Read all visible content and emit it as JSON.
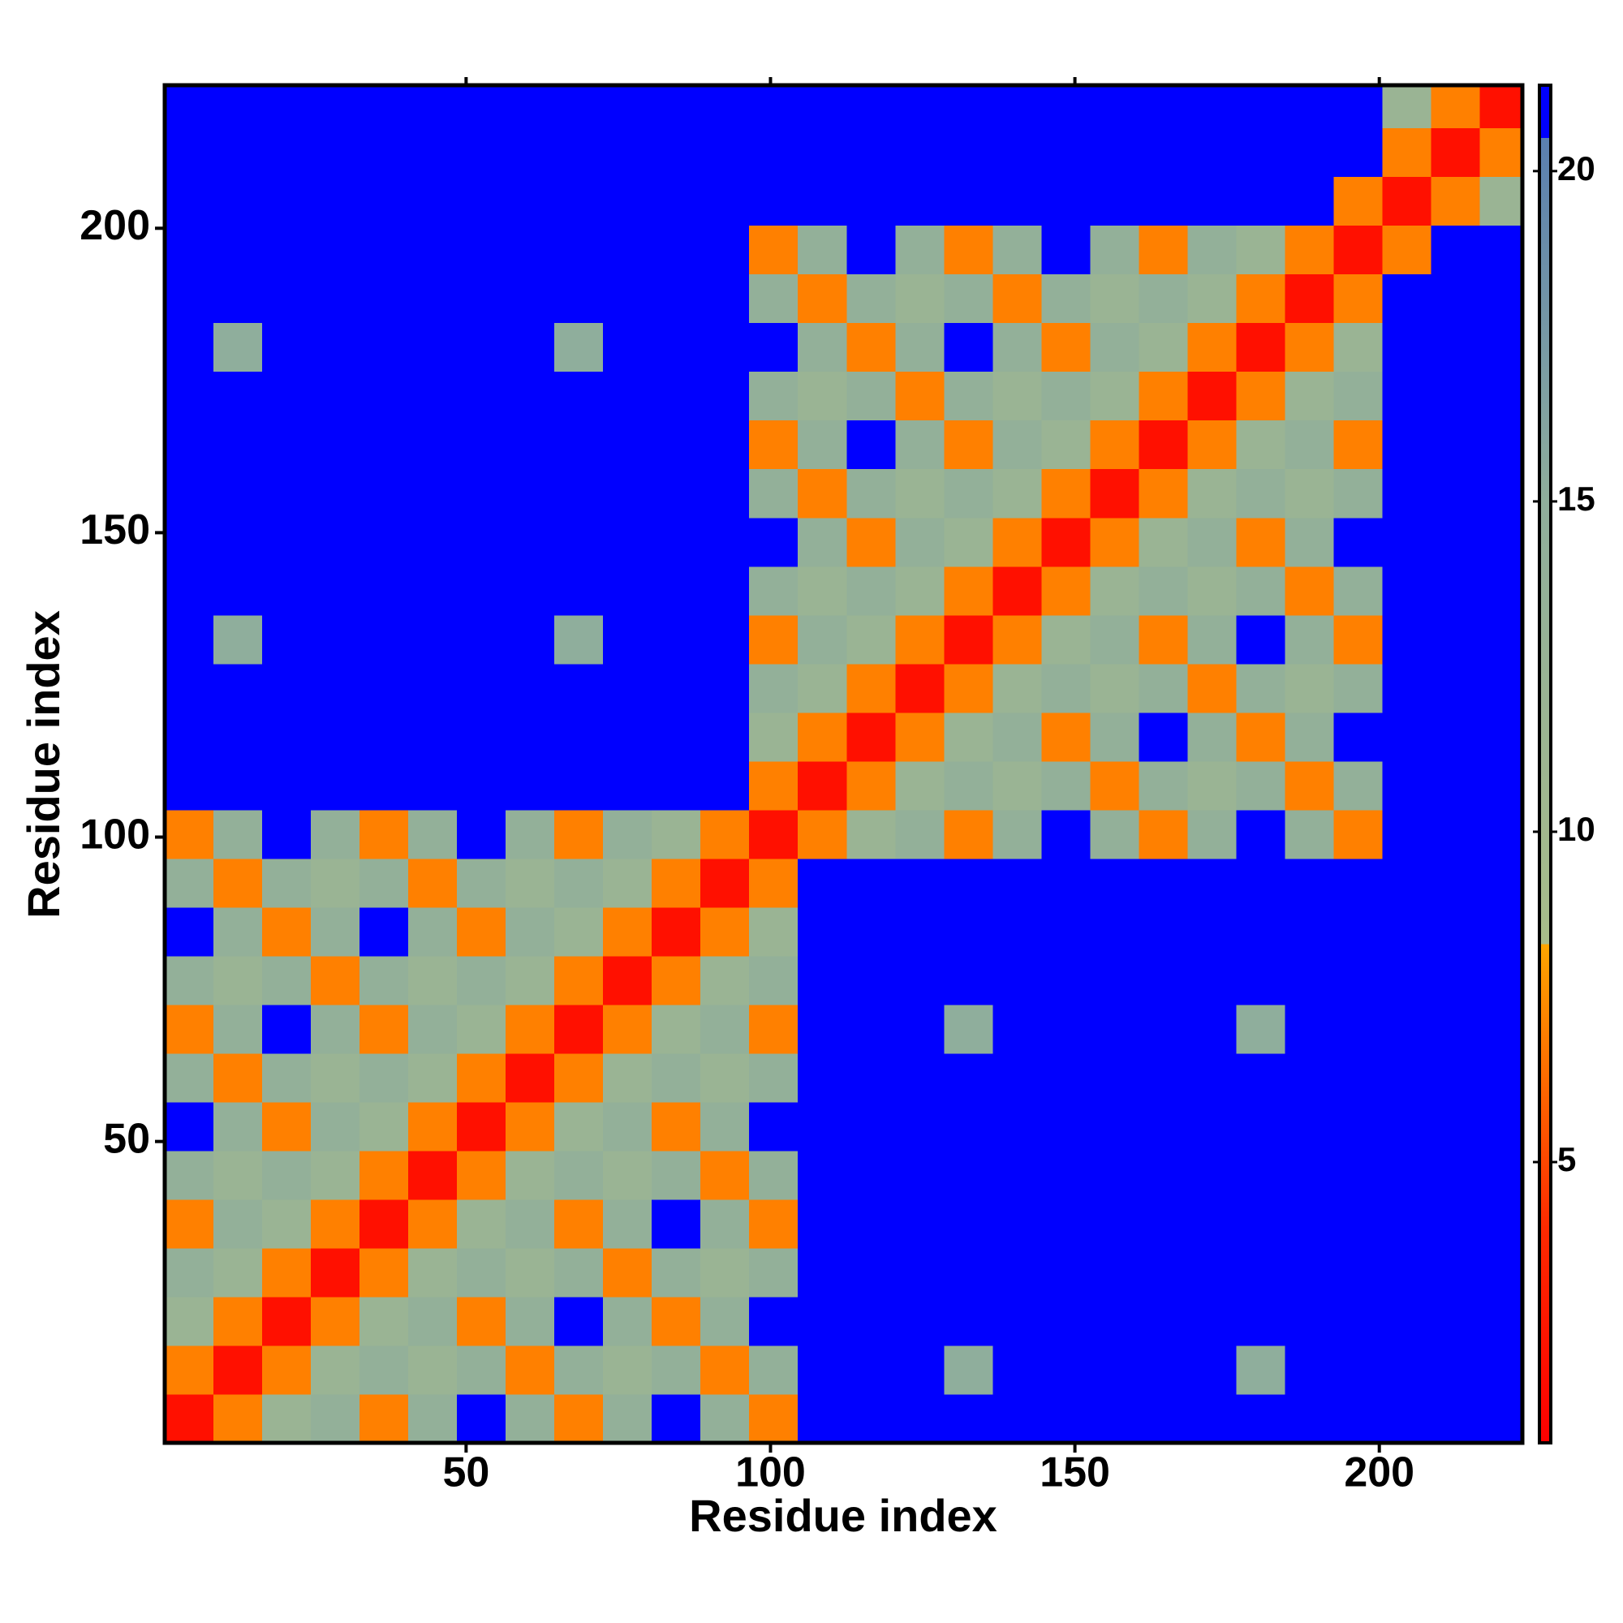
{
  "chart_data": {
    "type": "heatmap",
    "xlabel": "Residue index",
    "ylabel": "Residue index",
    "xlim": [
      0.5,
      223.5
    ],
    "ylim": [
      0.5,
      223.5
    ],
    "xticks": [
      50,
      100,
      150,
      200
    ],
    "yticks": [
      50,
      100,
      150,
      200
    ],
    "xbins": [
      0.5,
      8.5,
      16.5,
      24.5,
      32.5,
      40.5,
      48.5,
      56.5,
      64.5,
      72.5,
      80.5,
      88.5,
      96.5,
      104.5,
      112.5,
      120.5,
      128.5,
      136.5,
      144.5,
      152.5,
      160.5,
      168.5,
      176.5,
      184.5,
      192.5,
      200.5,
      208.5,
      216.5,
      224.5
    ],
    "ybins": [
      0.5,
      8.5,
      16.5,
      24.5,
      32.5,
      40.5,
      48.5,
      56.5,
      64.5,
      72.5,
      80.5,
      88.5,
      96.5,
      104.5,
      112.5,
      120.5,
      128.5,
      136.5,
      144.5,
      152.5,
      160.5,
      168.5,
      176.5,
      184.5,
      192.5,
      200.5,
      208.5,
      216.5,
      224.5
    ],
    "z": [
      [
        2,
        7,
        12,
        14,
        7,
        14,
        22,
        14,
        7,
        14,
        22,
        14,
        7,
        22,
        22,
        22,
        22,
        22,
        22,
        22,
        22,
        22,
        22,
        22,
        22,
        22,
        22,
        22
      ],
      [
        7,
        2,
        7,
        12,
        14,
        12,
        14,
        7,
        14,
        12,
        14,
        7,
        14,
        22,
        22,
        22,
        15,
        22,
        22,
        22,
        22,
        22,
        15,
        22,
        22,
        22,
        22,
        22
      ],
      [
        12,
        7,
        2,
        7,
        12,
        14,
        7,
        14,
        22,
        14,
        7,
        14,
        22,
        22,
        22,
        22,
        22,
        22,
        22,
        22,
        22,
        22,
        22,
        22,
        22,
        22,
        22,
        22
      ],
      [
        14,
        12,
        7,
        2,
        7,
        12,
        14,
        12,
        14,
        7,
        14,
        12,
        14,
        22,
        22,
        22,
        22,
        22,
        22,
        22,
        22,
        22,
        22,
        22,
        22,
        22,
        22,
        22
      ],
      [
        7,
        14,
        12,
        7,
        2,
        7,
        12,
        14,
        7,
        14,
        22,
        14,
        7,
        22,
        22,
        22,
        22,
        22,
        22,
        22,
        22,
        22,
        22,
        22,
        22,
        22,
        22,
        22
      ],
      [
        14,
        12,
        14,
        12,
        7,
        2,
        7,
        12,
        14,
        12,
        14,
        7,
        14,
        22,
        22,
        22,
        22,
        22,
        22,
        22,
        22,
        22,
        22,
        22,
        22,
        22,
        22,
        22
      ],
      [
        22,
        14,
        7,
        14,
        12,
        7,
        2,
        7,
        12,
        14,
        7,
        14,
        22,
        22,
        22,
        22,
        22,
        22,
        22,
        22,
        22,
        22,
        22,
        22,
        22,
        22,
        22,
        22
      ],
      [
        14,
        7,
        14,
        12,
        14,
        12,
        7,
        2,
        7,
        12,
        14,
        12,
        14,
        22,
        22,
        22,
        22,
        22,
        22,
        22,
        22,
        22,
        22,
        22,
        22,
        22,
        22,
        22
      ],
      [
        7,
        14,
        22,
        14,
        7,
        14,
        12,
        7,
        2,
        7,
        12,
        14,
        7,
        22,
        22,
        22,
        15,
        22,
        22,
        22,
        22,
        22,
        15,
        22,
        22,
        22,
        22,
        22
      ],
      [
        14,
        12,
        14,
        7,
        14,
        12,
        14,
        12,
        7,
        2,
        7,
        12,
        14,
        22,
        22,
        22,
        22,
        22,
        22,
        22,
        22,
        22,
        22,
        22,
        22,
        22,
        22,
        22
      ],
      [
        22,
        14,
        7,
        14,
        22,
        14,
        7,
        14,
        12,
        7,
        2,
        7,
        12,
        22,
        22,
        22,
        22,
        22,
        22,
        22,
        22,
        22,
        22,
        22,
        22,
        22,
        22,
        22
      ],
      [
        14,
        7,
        14,
        12,
        14,
        7,
        14,
        12,
        14,
        12,
        7,
        2,
        7,
        22,
        22,
        22,
        22,
        22,
        22,
        22,
        22,
        22,
        22,
        22,
        22,
        22,
        22,
        22
      ],
      [
        7,
        14,
        22,
        14,
        7,
        14,
        22,
        14,
        7,
        14,
        12,
        7,
        2,
        7,
        12,
        14,
        7,
        14,
        22,
        14,
        7,
        14,
        22,
        14,
        7,
        22,
        22,
        22
      ],
      [
        22,
        22,
        22,
        22,
        22,
        22,
        22,
        22,
        22,
        22,
        22,
        22,
        7,
        2,
        7,
        12,
        14,
        12,
        14,
        7,
        14,
        12,
        14,
        7,
        14,
        22,
        22,
        22
      ],
      [
        22,
        22,
        22,
        22,
        22,
        22,
        22,
        22,
        22,
        22,
        22,
        22,
        12,
        7,
        2,
        7,
        12,
        14,
        7,
        14,
        22,
        14,
        7,
        14,
        22,
        22,
        22,
        22
      ],
      [
        22,
        22,
        22,
        22,
        22,
        22,
        22,
        22,
        22,
        22,
        22,
        22,
        14,
        12,
        7,
        2,
        7,
        12,
        14,
        12,
        14,
        7,
        14,
        12,
        14,
        22,
        22,
        22
      ],
      [
        22,
        15,
        22,
        22,
        22,
        22,
        22,
        22,
        15,
        22,
        22,
        22,
        7,
        14,
        12,
        7,
        2,
        7,
        12,
        14,
        7,
        14,
        22,
        14,
        7,
        22,
        22,
        22
      ],
      [
        22,
        22,
        22,
        22,
        22,
        22,
        22,
        22,
        22,
        22,
        22,
        22,
        14,
        12,
        14,
        12,
        7,
        2,
        7,
        12,
        14,
        12,
        14,
        7,
        14,
        22,
        22,
        22
      ],
      [
        22,
        22,
        22,
        22,
        22,
        22,
        22,
        22,
        22,
        22,
        22,
        22,
        22,
        14,
        7,
        14,
        12,
        7,
        2,
        7,
        12,
        14,
        7,
        14,
        22,
        22,
        22,
        22
      ],
      [
        22,
        22,
        22,
        22,
        22,
        22,
        22,
        22,
        22,
        22,
        22,
        22,
        14,
        7,
        14,
        12,
        14,
        12,
        7,
        2,
        7,
        12,
        14,
        12,
        14,
        22,
        22,
        22
      ],
      [
        22,
        22,
        22,
        22,
        22,
        22,
        22,
        22,
        22,
        22,
        22,
        22,
        7,
        14,
        22,
        14,
        7,
        14,
        12,
        7,
        2,
        7,
        12,
        14,
        7,
        22,
        22,
        22
      ],
      [
        22,
        22,
        22,
        22,
        22,
        22,
        22,
        22,
        22,
        22,
        22,
        22,
        14,
        12,
        14,
        7,
        14,
        12,
        14,
        12,
        7,
        2,
        7,
        12,
        14,
        22,
        22,
        22
      ],
      [
        22,
        15,
        22,
        22,
        22,
        22,
        22,
        22,
        15,
        22,
        22,
        22,
        22,
        14,
        7,
        14,
        22,
        14,
        7,
        14,
        12,
        7,
        2,
        7,
        12,
        22,
        22,
        22
      ],
      [
        22,
        22,
        22,
        22,
        22,
        22,
        22,
        22,
        22,
        22,
        22,
        22,
        14,
        7,
        14,
        12,
        14,
        7,
        14,
        12,
        14,
        12,
        7,
        2,
        7,
        22,
        22,
        22
      ],
      [
        22,
        22,
        22,
        22,
        22,
        22,
        22,
        22,
        22,
        22,
        22,
        22,
        7,
        14,
        22,
        14,
        7,
        14,
        22,
        14,
        7,
        14,
        12,
        7,
        2,
        7,
        22,
        22
      ],
      [
        22,
        22,
        22,
        22,
        22,
        22,
        22,
        22,
        22,
        22,
        22,
        22,
        22,
        22,
        22,
        22,
        22,
        22,
        22,
        22,
        22,
        22,
        22,
        22,
        7,
        2,
        7,
        12
      ],
      [
        22,
        22,
        22,
        22,
        22,
        22,
        22,
        22,
        22,
        22,
        22,
        22,
        22,
        22,
        22,
        22,
        22,
        22,
        22,
        22,
        22,
        22,
        22,
        22,
        22,
        7,
        2,
        7
      ],
      [
        22,
        22,
        22,
        22,
        22,
        22,
        22,
        22,
        22,
        22,
        22,
        22,
        22,
        22,
        22,
        22,
        22,
        22,
        22,
        22,
        22,
        22,
        22,
        22,
        22,
        12,
        7,
        2
      ]
    ],
    "colorbar": {
      "lim": [
        0.75,
        21.3
      ],
      "ticks": [
        5,
        10,
        15,
        20
      ],
      "stops": [
        {
          "value": 0.75,
          "color": "#ff0000"
        },
        {
          "value": 4,
          "color": "#ff2a00"
        },
        {
          "value": 8.3,
          "color": "#ffa500"
        },
        {
          "value": 8.3,
          "color": "#a8bc8a"
        },
        {
          "value": 15,
          "color": "#8fae9c"
        },
        {
          "value": 20.5,
          "color": "#5a7fb0"
        },
        {
          "value": 20.5,
          "color": "#0000ff"
        },
        {
          "value": 21.3,
          "color": "#0000ff"
        }
      ]
    }
  }
}
